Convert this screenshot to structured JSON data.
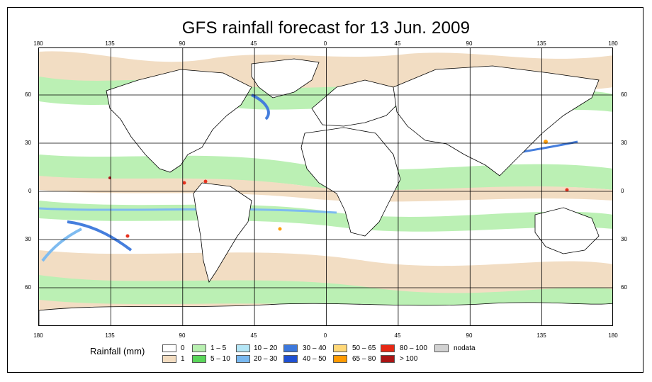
{
  "title": "GFS rainfall forecast for 13 Jun. 2009",
  "axes": {
    "lon_labels": [
      "180",
      "135",
      "90",
      "45",
      "0",
      "45",
      "90",
      "135",
      "180"
    ],
    "lat_labels": [
      "60",
      "30",
      "0",
      "30",
      "60"
    ]
  },
  "legend": {
    "title": "Rainfall (mm)",
    "items": [
      {
        "label": "0",
        "color": "#ffffff"
      },
      {
        "label": "1",
        "color": "#f2dcc0"
      },
      {
        "label": "1 – 5",
        "color": "#b8f0b0"
      },
      {
        "label": "5 – 10",
        "color": "#5ad65a"
      },
      {
        "label": "10 – 20",
        "color": "#b4e6f6"
      },
      {
        "label": "20 – 30",
        "color": "#78b8f0"
      },
      {
        "label": "30 – 40",
        "color": "#3c78dc"
      },
      {
        "label": "40 – 50",
        "color": "#1e50d2"
      },
      {
        "label": "50 – 65",
        "color": "#ffd878"
      },
      {
        "label": "65 – 80",
        "color": "#ff9a00"
      },
      {
        "label": "80 – 100",
        "color": "#e62814"
      },
      {
        "label": "> 100",
        "color": "#aa1414"
      },
      {
        "label": "nodata",
        "color": "#d2d2d2"
      }
    ]
  }
}
